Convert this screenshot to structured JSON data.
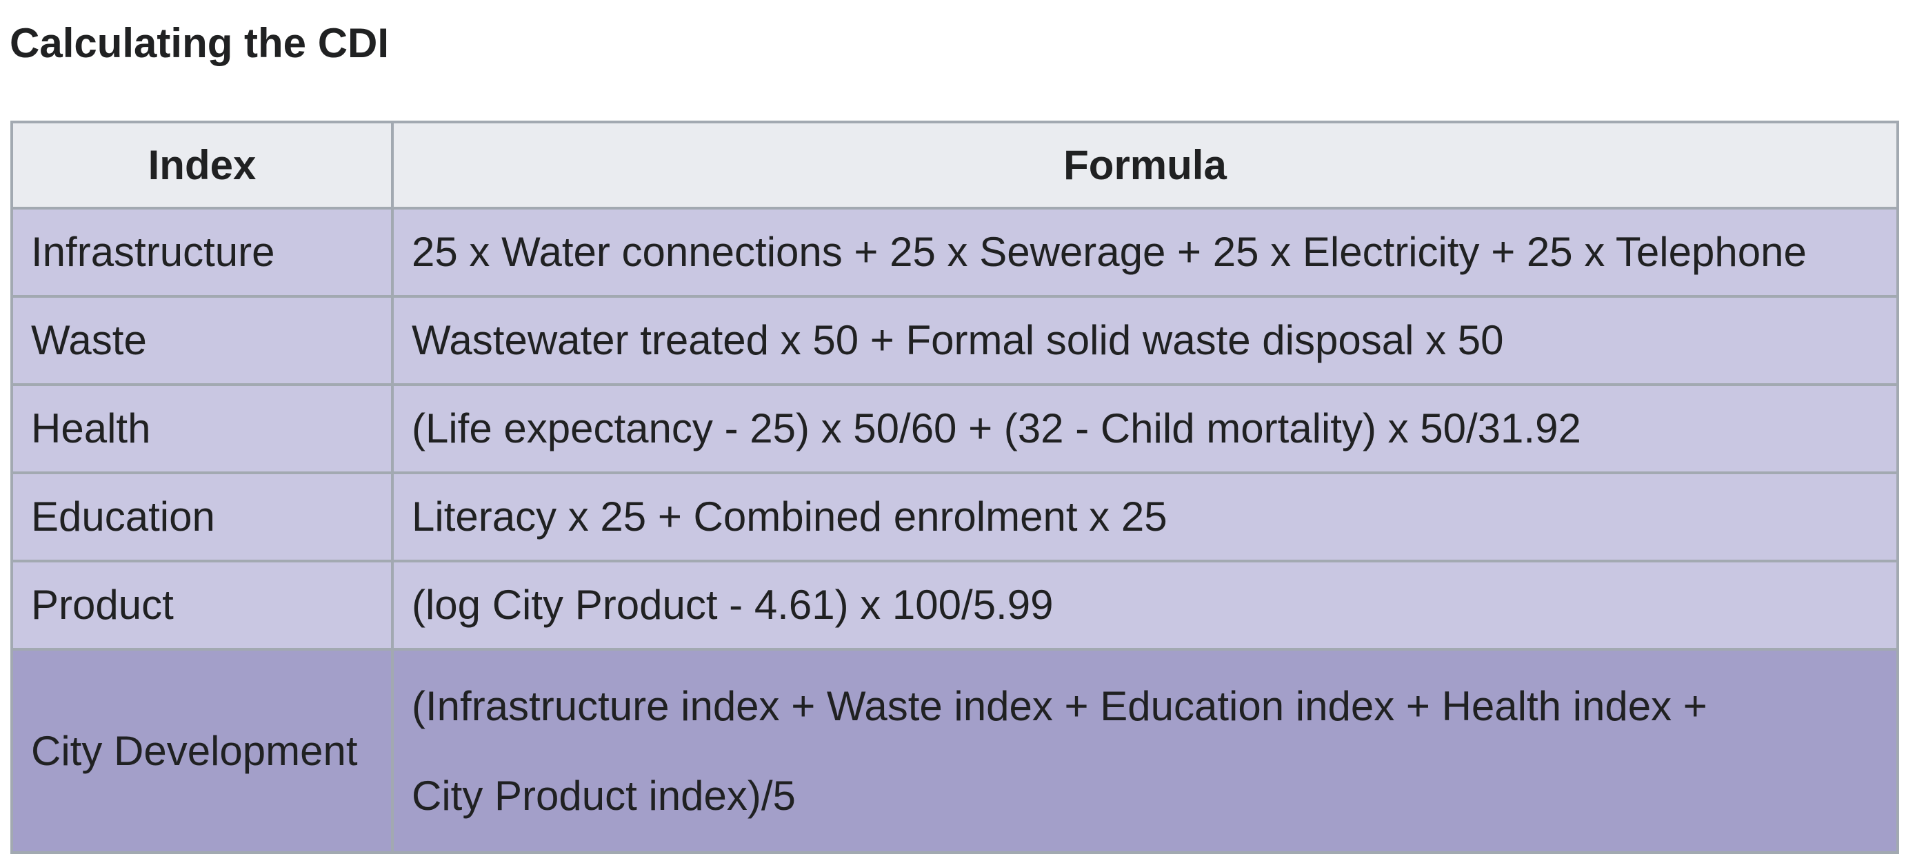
{
  "title": "Calculating the CDI",
  "table": {
    "headers": {
      "index": "Index",
      "formula": "Formula"
    },
    "rows": [
      {
        "index": "Infrastructure",
        "formula": "25 x Water connections + 25 x Sewerage + 25 x Electricity + 25 x Telephone"
      },
      {
        "index": "Waste",
        "formula": "Wastewater treated x 50 + Formal solid waste disposal x 50"
      },
      {
        "index": "Health",
        "formula": "(Life expectancy - 25) x 50/60 + (32 - Child mortality) x 50/31.92"
      },
      {
        "index": "Education",
        "formula": "Literacy x 25 + Combined enrolment x 25"
      },
      {
        "index": "Product",
        "formula": "(log City Product - 4.61) x 100/5.99"
      }
    ],
    "total": {
      "index": "City Development",
      "formula_line1": "(Infrastructure index + Waste index + Education index + Health index +",
      "formula_line2": "City Product index)/5"
    }
  },
  "colors": {
    "header_bg": "#eaecf0",
    "row_bg": "#c9c7e2",
    "total_row_bg": "#a39fc9",
    "border": "#a2a9b1",
    "text": "#202122"
  }
}
